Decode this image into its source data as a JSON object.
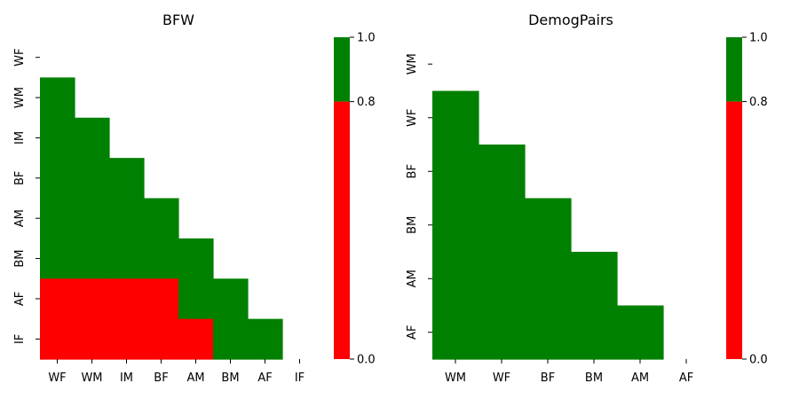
{
  "colors": {
    "pass": "#008000",
    "fail": "#ff0000"
  },
  "chart_data": [
    {
      "type": "heatmap",
      "title": "BFW",
      "xlabel": "",
      "ylabel": "",
      "categories_x": [
        "WF",
        "WM",
        "IM",
        "BF",
        "AM",
        "BM",
        "AF",
        "IF"
      ],
      "categories_y": [
        "WF",
        "WM",
        "IM",
        "BF",
        "AM",
        "BM",
        "AF",
        "IF"
      ],
      "mask": "lower-triangle",
      "values": [
        [
          null,
          null,
          null,
          null,
          null,
          null,
          null,
          null
        ],
        [
          1,
          null,
          null,
          null,
          null,
          null,
          null,
          null
        ],
        [
          1,
          1,
          null,
          null,
          null,
          null,
          null,
          null
        ],
        [
          1,
          1,
          1,
          null,
          null,
          null,
          null,
          null
        ],
        [
          1,
          1,
          1,
          1,
          null,
          null,
          null,
          null
        ],
        [
          1,
          1,
          1,
          1,
          1,
          null,
          null,
          null
        ],
        [
          0,
          0,
          0,
          0,
          1,
          1,
          null,
          null
        ],
        [
          0,
          0,
          0,
          0,
          0,
          1,
          1,
          null
        ]
      ],
      "colorbar": {
        "ticks": [
          "0.0",
          "0.8",
          "1.0"
        ],
        "min": 0,
        "max": 1,
        "threshold": 0.8
      },
      "grid": false,
      "legend": "colorbar-right"
    },
    {
      "type": "heatmap",
      "title": "DemogPairs",
      "xlabel": "",
      "ylabel": "",
      "categories_x": [
        "WM",
        "WF",
        "BF",
        "BM",
        "AM",
        "AF"
      ],
      "categories_y": [
        "WM",
        "WF",
        "BF",
        "BM",
        "AM",
        "AF"
      ],
      "mask": "lower-triangle",
      "values": [
        [
          null,
          null,
          null,
          null,
          null,
          null
        ],
        [
          1,
          null,
          null,
          null,
          null,
          null
        ],
        [
          1,
          1,
          null,
          null,
          null,
          null
        ],
        [
          1,
          1,
          1,
          null,
          null,
          null
        ],
        [
          1,
          1,
          1,
          1,
          null,
          null
        ],
        [
          1,
          1,
          1,
          1,
          1,
          null
        ]
      ],
      "colorbar": {
        "ticks": [
          "0.0",
          "0.8",
          "1.0"
        ],
        "min": 0,
        "max": 1,
        "threshold": 0.8
      },
      "grid": false,
      "legend": "colorbar-right"
    }
  ]
}
